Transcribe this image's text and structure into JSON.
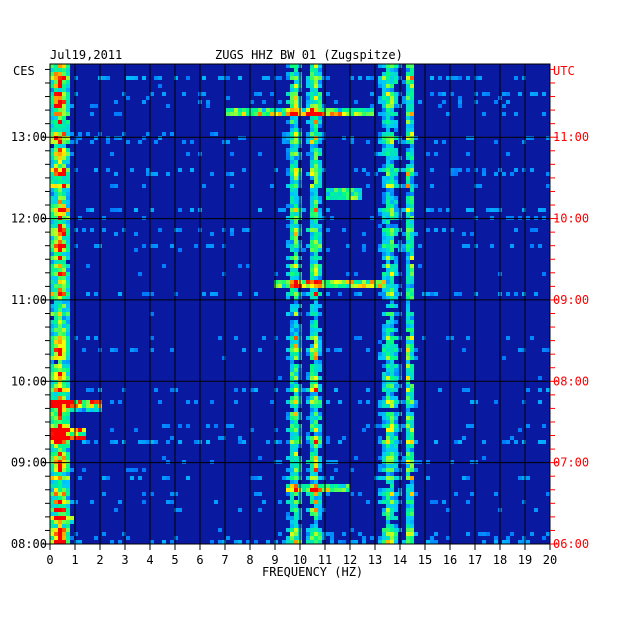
{
  "chart_data": {
    "type": "heatmap",
    "title": "ZUGS HHZ BW 01 (Zugspitze)",
    "date": "Jul19,2011",
    "xlabel": "FREQUENCY (HZ)",
    "xlim": [
      0,
      20
    ],
    "x_ticks": [
      "0",
      "1",
      "2",
      "3",
      "4",
      "5",
      "6",
      "7",
      "8",
      "9",
      "10",
      "11",
      "12",
      "13",
      "14",
      "15",
      "16",
      "17",
      "18",
      "19",
      "20"
    ],
    "left_axis": {
      "label": "CES",
      "ticks": [
        "08:00",
        "09:00",
        "10:00",
        "11:00",
        "12:00",
        "13:00"
      ],
      "tick_hours": [
        8,
        9,
        10,
        11,
        12,
        13
      ],
      "range_hours": [
        8.0,
        13.9
      ]
    },
    "right_axis": {
      "label": "UTC",
      "ticks": [
        "06:00",
        "07:00",
        "08:00",
        "09:00",
        "10:00",
        "11:00"
      ],
      "tick_hours": [
        6,
        7,
        8,
        9,
        10,
        11
      ],
      "color": "#ff0000"
    },
    "grid": true,
    "colormap": [
      "#000080",
      "#0000ff",
      "#00c8ff",
      "#00ff80",
      "#ffff00",
      "#ff0000"
    ],
    "background_color": "#0a1aa0",
    "frequency_bands_hz": [
      {
        "center": 0.4,
        "width": 0.5,
        "strength": 0.8
      },
      {
        "center": 9.8,
        "width": 0.35,
        "strength": 0.75
      },
      {
        "center": 10.6,
        "width": 0.35,
        "strength": 0.8
      },
      {
        "center": 13.6,
        "width": 0.5,
        "strength": 0.65
      },
      {
        "center": 14.4,
        "width": 0.25,
        "strength": 0.85
      }
    ],
    "events": [
      {
        "hour": 9.35,
        "f_from": 0,
        "f_to": 1.5,
        "strength": 0.9
      },
      {
        "hour": 11.2,
        "f_from": 9,
        "f_to": 13.5,
        "strength": 0.85
      },
      {
        "hour": 12.3,
        "f_from": 11,
        "f_to": 12.5,
        "strength": 0.8
      },
      {
        "hour": 8.7,
        "f_from": 9.5,
        "f_to": 12,
        "strength": 0.8
      },
      {
        "hour": 13.3,
        "f_from": 7,
        "f_to": 13,
        "strength": 0.7
      },
      {
        "hour": 9.7,
        "f_from": 0,
        "f_to": 2,
        "strength": 0.75
      },
      {
        "hour": 8.3,
        "f_from": 0,
        "f_to": 1,
        "strength": 0.8
      }
    ]
  }
}
